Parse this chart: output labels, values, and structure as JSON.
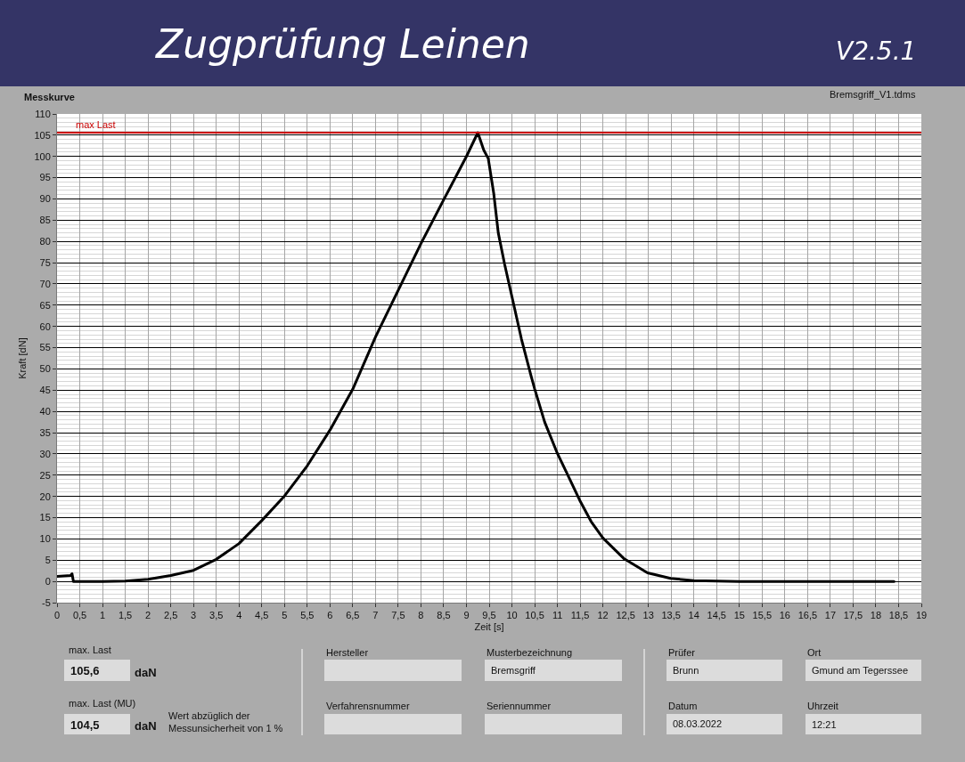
{
  "chart_data": {
    "type": "line",
    "title": "Zugprüfung Leinen",
    "xlabel": "Zeit [s]",
    "ylabel": "Kraft [dN]",
    "annotations": [
      "Messkurve",
      "Bremsgriff_V1.tdms",
      "V2.5.1",
      "max. Last",
      "105,6",
      "daN",
      "max. Last (MU)",
      "104,5",
      "daN",
      "Wert abzüglich der\nMessunsicherheit von 1 %",
      "Hersteller",
      "Verfahrensnummer",
      "Musterbezeichnung",
      "Bremsgriff",
      "Seriennummer",
      "Prüfer",
      "Brunn",
      "Datum",
      "08.03.2022",
      "Ort",
      "Gmund am Tegerssee",
      "Uhrzeit",
      "12:21"
    ],
    "x": [
      0,
      0.3,
      0.33,
      0.36,
      0.5,
      1.0,
      1.5,
      2.0,
      2.5,
      3.0,
      3.5,
      4.0,
      4.5,
      5.0,
      5.5,
      6.0,
      6.5,
      7.0,
      7.5,
      8.0,
      8.5,
      9.0,
      9.25,
      9.38,
      9.48,
      9.6,
      9.7,
      9.84,
      10.03,
      10.21,
      10.42,
      10.5,
      10.72,
      11.0,
      11.23,
      11.49,
      11.74,
      12.0,
      12.47,
      12.98,
      13.49,
      14.0,
      15.0,
      16.0,
      17.0,
      18.4
    ],
    "series": [
      {
        "color": "#000000",
        "values": [
          1.2,
          1.4,
          1.8,
          0.0,
          0.0,
          0.0,
          0.1,
          0.5,
          1.4,
          2.6,
          5.2,
          8.9,
          14.3,
          20.1,
          27.2,
          35.6,
          45.2,
          57.5,
          68.5,
          79.5,
          89.8,
          100.0,
          105.6,
          101.5,
          99.5,
          91.3,
          82.0,
          74.6,
          65.6,
          57.0,
          48.4,
          45.3,
          37.5,
          30.1,
          25.0,
          19.1,
          14.1,
          10.2,
          5.3,
          2.0,
          0.7,
          0.2,
          0.0,
          0.0,
          0.0,
          0.0
        ]
      }
    ],
    "xlim": [
      0,
      19
    ],
    "ylim": [
      -5,
      110
    ],
    "xticks": [
      0,
      {
        "value": 0.5,
        "label": "0,5"
      },
      1,
      {
        "value": 1.5,
        "label": "1,5"
      },
      2,
      {
        "value": 2.5,
        "label": "2,5"
      },
      3,
      {
        "value": 3.5,
        "label": "3,5"
      },
      4,
      {
        "value": 4.5,
        "label": "4,5"
      },
      5,
      {
        "value": 5.5,
        "label": "5,5"
      },
      6,
      {
        "value": 6.5,
        "label": "6,5"
      },
      7,
      {
        "value": 7.5,
        "label": "7,5"
      },
      8,
      {
        "value": 8.5,
        "label": "8,5"
      },
      9,
      {
        "value": 9.5,
        "label": "9,5"
      },
      10,
      {
        "value": 10.5,
        "label": "10,5"
      },
      11,
      {
        "value": 11.5,
        "label": "11,5"
      },
      12,
      {
        "value": 12.5,
        "label": "12,5"
      },
      13,
      {
        "value": 13.5,
        "label": "13,5"
      },
      14,
      {
        "value": 14.5,
        "label": "14,5"
      },
      15,
      {
        "value": 15.5,
        "label": "15,5"
      },
      16,
      {
        "value": 16.5,
        "label": "16,5"
      },
      17,
      {
        "value": 17.5,
        "label": "17,5"
      },
      18,
      {
        "value": 18.5,
        "label": "18,5"
      },
      19
    ],
    "yticks": [
      -5,
      0,
      5,
      10,
      15,
      20,
      25,
      30,
      35,
      40,
      45,
      50,
      55,
      60,
      65,
      70,
      75,
      80,
      85,
      90,
      95,
      100,
      105,
      110
    ],
    "grid": true,
    "line_style": "solid",
    "ref_lines": [
      {
        "axis": "y",
        "value": 105.6,
        "label": "max Last",
        "color": "#cc0000"
      }
    ]
  }
}
